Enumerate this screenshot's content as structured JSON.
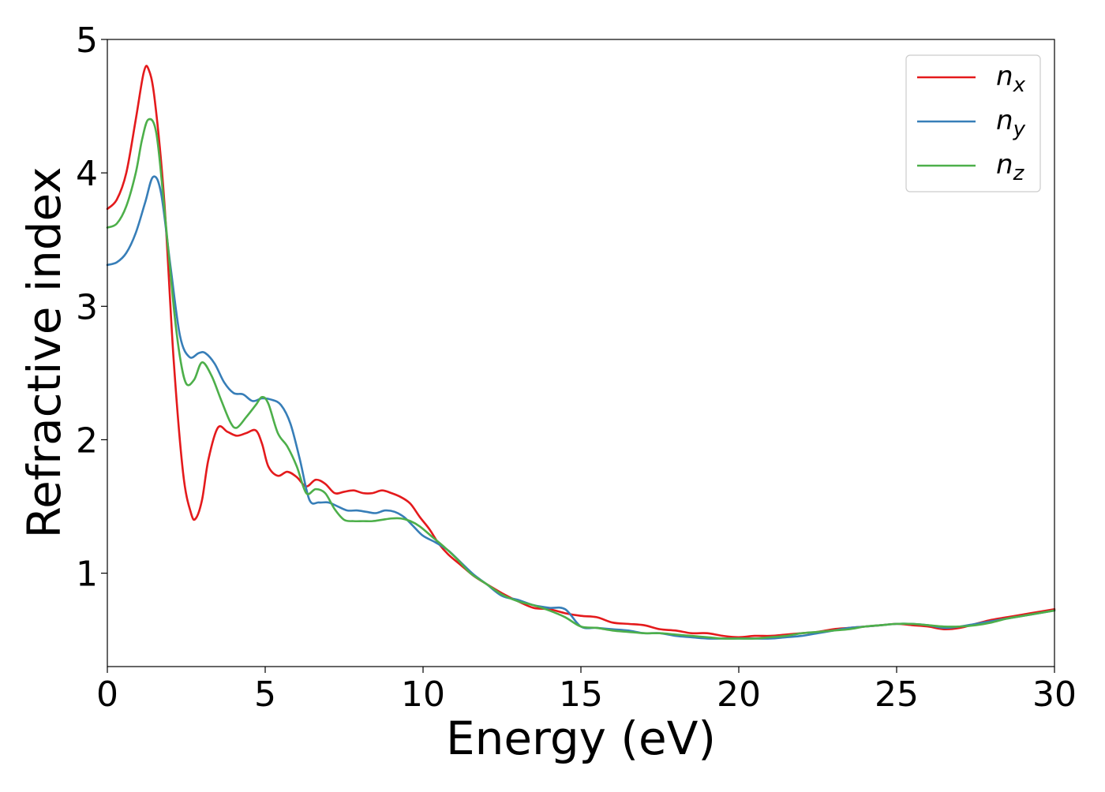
{
  "chart_data": {
    "type": "line",
    "xlabel": "Energy (eV)",
    "ylabel": "Refractive index",
    "xlim": [
      0,
      30
    ],
    "ylim": [
      0.3,
      5
    ],
    "xticks": [
      0,
      5,
      10,
      15,
      20,
      25,
      30
    ],
    "yticks": [
      1,
      2,
      3,
      4,
      5
    ],
    "xtick_labels": [
      "0",
      "5",
      "10",
      "15",
      "20",
      "25",
      "30"
    ],
    "ytick_labels": [
      "1",
      "2",
      "3",
      "4",
      "5"
    ],
    "grid": false,
    "legend_position": "top-right",
    "series": [
      {
        "name": "n",
        "subscript": "x",
        "color": "#e41a1c",
        "x": [
          0,
          0.3,
          0.6,
          0.9,
          1.15,
          1.3,
          1.5,
          1.8,
          2.1,
          2.4,
          2.65,
          2.8,
          3.0,
          3.2,
          3.5,
          3.8,
          4.1,
          4.4,
          4.7,
          4.9,
          5.1,
          5.4,
          5.7,
          6.0,
          6.3,
          6.6,
          6.9,
          7.2,
          7.5,
          7.8,
          8.1,
          8.4,
          8.7,
          9.0,
          9.3,
          9.6,
          9.9,
          10.2,
          10.5,
          10.8,
          11.2,
          11.6,
          12.0,
          12.5,
          13.0,
          13.5,
          14.0,
          14.5,
          15.0,
          15.5,
          16.0,
          16.5,
          17.0,
          17.5,
          18.0,
          18.5,
          19.0,
          19.5,
          20.0,
          20.5,
          21.0,
          21.5,
          22.0,
          22.5,
          23.0,
          23.5,
          24.0,
          24.5,
          25.0,
          25.5,
          26.0,
          26.5,
          27.0,
          27.5,
          28.0,
          28.5,
          29.0,
          29.5,
          30.0
        ],
        "values": [
          3.73,
          3.8,
          4.0,
          4.4,
          4.75,
          4.78,
          4.55,
          3.8,
          2.6,
          1.75,
          1.45,
          1.41,
          1.55,
          1.85,
          2.09,
          2.06,
          2.03,
          2.05,
          2.07,
          1.97,
          1.8,
          1.73,
          1.76,
          1.72,
          1.65,
          1.7,
          1.67,
          1.6,
          1.61,
          1.62,
          1.6,
          1.6,
          1.62,
          1.6,
          1.57,
          1.52,
          1.42,
          1.33,
          1.22,
          1.14,
          1.06,
          0.98,
          0.92,
          0.85,
          0.79,
          0.74,
          0.73,
          0.7,
          0.68,
          0.67,
          0.63,
          0.62,
          0.61,
          0.58,
          0.57,
          0.55,
          0.55,
          0.53,
          0.52,
          0.53,
          0.53,
          0.54,
          0.55,
          0.56,
          0.58,
          0.59,
          0.6,
          0.61,
          0.62,
          0.61,
          0.6,
          0.58,
          0.59,
          0.62,
          0.65,
          0.67,
          0.69,
          0.71,
          0.73
        ]
      },
      {
        "name": "n",
        "subscript": "y",
        "color": "#377eb8",
        "x": [
          0,
          0.3,
          0.6,
          0.9,
          1.2,
          1.45,
          1.7,
          2.0,
          2.3,
          2.6,
          2.9,
          3.1,
          3.4,
          3.7,
          4.0,
          4.3,
          4.6,
          4.9,
          5.2,
          5.5,
          5.8,
          6.1,
          6.4,
          6.7,
          7.0,
          7.3,
          7.6,
          7.9,
          8.2,
          8.5,
          8.8,
          9.1,
          9.4,
          9.7,
          10.0,
          10.4,
          10.8,
          11.2,
          11.6,
          12.0,
          12.5,
          13.0,
          13.5,
          14.0,
          14.5,
          15.0,
          15.5,
          16.0,
          16.5,
          17.0,
          17.5,
          18.0,
          18.5,
          19.0,
          19.5,
          20.0,
          20.5,
          21.0,
          21.5,
          22.0,
          22.5,
          23.0,
          23.5,
          24.0,
          24.5,
          25.0,
          25.5,
          26.0,
          26.5,
          27.0,
          27.5,
          28.0,
          28.5,
          29.0,
          29.5,
          30.0
        ],
        "values": [
          3.31,
          3.33,
          3.4,
          3.55,
          3.78,
          3.97,
          3.85,
          3.3,
          2.78,
          2.62,
          2.65,
          2.65,
          2.57,
          2.43,
          2.35,
          2.34,
          2.29,
          2.31,
          2.3,
          2.26,
          2.12,
          1.85,
          1.55,
          1.53,
          1.53,
          1.5,
          1.47,
          1.47,
          1.46,
          1.45,
          1.47,
          1.46,
          1.42,
          1.35,
          1.28,
          1.23,
          1.17,
          1.08,
          0.99,
          0.92,
          0.83,
          0.8,
          0.76,
          0.74,
          0.73,
          0.6,
          0.59,
          0.58,
          0.57,
          0.55,
          0.55,
          0.53,
          0.52,
          0.51,
          0.51,
          0.51,
          0.51,
          0.51,
          0.52,
          0.53,
          0.55,
          0.57,
          0.59,
          0.6,
          0.61,
          0.62,
          0.62,
          0.61,
          0.59,
          0.6,
          0.62,
          0.64,
          0.66,
          0.68,
          0.7,
          0.72
        ]
      },
      {
        "name": "n",
        "subscript": "z",
        "color": "#4daf4a",
        "x": [
          0,
          0.3,
          0.6,
          0.9,
          1.1,
          1.3,
          1.55,
          1.8,
          2.1,
          2.3,
          2.5,
          2.75,
          3.0,
          3.3,
          3.6,
          3.9,
          4.1,
          4.4,
          4.7,
          4.9,
          5.1,
          5.4,
          5.7,
          6.0,
          6.3,
          6.6,
          6.9,
          7.2,
          7.5,
          7.8,
          8.1,
          8.4,
          8.7,
          9.0,
          9.3,
          9.6,
          9.9,
          10.3,
          10.7,
          11.1,
          11.5,
          12.0,
          12.5,
          13.0,
          13.5,
          14.0,
          14.5,
          15.0,
          15.5,
          16.0,
          16.5,
          17.0,
          17.5,
          18.0,
          18.5,
          19.0,
          19.5,
          20.0,
          20.5,
          21.0,
          21.5,
          22.0,
          22.5,
          23.0,
          23.5,
          24.0,
          24.5,
          25.0,
          25.5,
          26.0,
          26.5,
          27.0,
          27.5,
          28.0,
          28.5,
          29.0,
          29.5,
          30.0
        ],
        "values": [
          3.59,
          3.62,
          3.75,
          4.0,
          4.25,
          4.4,
          4.3,
          3.75,
          3.0,
          2.62,
          2.42,
          2.45,
          2.58,
          2.48,
          2.3,
          2.13,
          2.09,
          2.17,
          2.26,
          2.32,
          2.27,
          2.05,
          1.95,
          1.8,
          1.6,
          1.63,
          1.6,
          1.48,
          1.4,
          1.39,
          1.39,
          1.39,
          1.4,
          1.41,
          1.41,
          1.39,
          1.35,
          1.27,
          1.19,
          1.1,
          1.0,
          0.92,
          0.84,
          0.79,
          0.76,
          0.72,
          0.67,
          0.6,
          0.59,
          0.57,
          0.56,
          0.55,
          0.55,
          0.54,
          0.53,
          0.52,
          0.51,
          0.51,
          0.51,
          0.52,
          0.53,
          0.55,
          0.56,
          0.57,
          0.58,
          0.6,
          0.61,
          0.62,
          0.62,
          0.61,
          0.6,
          0.6,
          0.61,
          0.63,
          0.66,
          0.68,
          0.7,
          0.72
        ]
      }
    ]
  }
}
